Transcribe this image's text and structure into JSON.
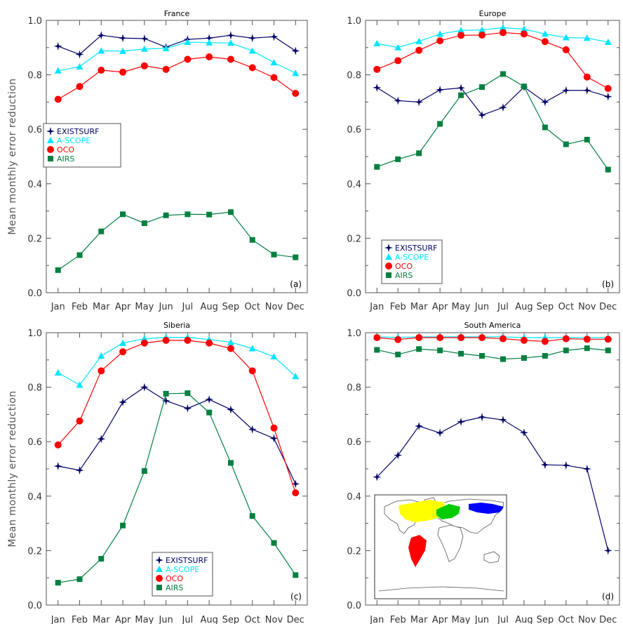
{
  "figure": {
    "ylabel": "Mean monthly error reduction",
    "months": [
      "Jan",
      "Feb",
      "Mar",
      "Apr",
      "May",
      "Jun",
      "Jul",
      "Aug",
      "Sep",
      "Oct",
      "Nov",
      "Dec"
    ],
    "yticks": [
      "0.0",
      "0.2",
      "0.4",
      "0.6",
      "0.8",
      "1.0"
    ]
  },
  "series_styles": [
    {
      "name": "EXISTSURF",
      "color": "#000066",
      "marker": "star"
    },
    {
      "name": "A-SCOPE",
      "color": "#00e5ff",
      "marker": "triangle"
    },
    {
      "name": "OCO",
      "color": "#ff0000",
      "marker": "circle"
    },
    {
      "name": "AIRS",
      "color": "#008040",
      "marker": "square"
    }
  ],
  "map_inset": {
    "regions": [
      {
        "name": "France",
        "color": "#00cc00"
      },
      {
        "name": "Europe",
        "color": "#ffff00"
      },
      {
        "name": "Siberia",
        "color": "#0000ff"
      },
      {
        "name": "South America",
        "color": "#ff0000"
      }
    ]
  },
  "chart_data": [
    {
      "type": "line",
      "title": "France",
      "panel": "(a)",
      "ylabel": "Mean monthly error reduction",
      "categories": [
        "Jan",
        "Feb",
        "Mar",
        "Apr",
        "May",
        "Jun",
        "Jul",
        "Aug",
        "Sep",
        "Oct",
        "Nov",
        "Dec"
      ],
      "ylim": [
        0,
        1
      ],
      "legend": "middle-left",
      "series": [
        {
          "name": "EXISTSURF",
          "values": [
            0.905,
            0.875,
            0.945,
            0.935,
            0.933,
            0.902,
            0.93,
            0.935,
            0.945,
            0.935,
            0.94,
            0.888
          ]
        },
        {
          "name": "A-SCOPE",
          "values": [
            0.815,
            0.83,
            0.888,
            0.887,
            0.895,
            0.897,
            0.92,
            0.918,
            0.917,
            0.888,
            0.845,
            0.806
          ]
        },
        {
          "name": "OCO",
          "values": [
            0.71,
            0.757,
            0.817,
            0.81,
            0.833,
            0.82,
            0.857,
            0.866,
            0.857,
            0.826,
            0.79,
            0.732
          ]
        },
        {
          "name": "AIRS",
          "values": [
            0.083,
            0.138,
            0.225,
            0.288,
            0.255,
            0.284,
            0.288,
            0.287,
            0.296,
            0.194,
            0.14,
            0.13
          ]
        }
      ]
    },
    {
      "type": "line",
      "title": "Europe",
      "panel": "(b)",
      "categories": [
        "Jan",
        "Feb",
        "Mar",
        "Apr",
        "May",
        "Jun",
        "Jul",
        "Aug",
        "Sep",
        "Oct",
        "Nov",
        "Dec"
      ],
      "ylim": [
        0,
        1
      ],
      "legend": "lower-left",
      "series": [
        {
          "name": "EXISTSURF",
          "values": [
            0.753,
            0.705,
            0.7,
            0.745,
            0.752,
            0.652,
            0.68,
            0.755,
            0.7,
            0.743,
            0.743,
            0.72
          ]
        },
        {
          "name": "A-SCOPE",
          "values": [
            0.915,
            0.9,
            0.923,
            0.95,
            0.963,
            0.965,
            0.973,
            0.968,
            0.95,
            0.937,
            0.935,
            0.92
          ]
        },
        {
          "name": "OCO",
          "values": [
            0.82,
            0.852,
            0.89,
            0.925,
            0.945,
            0.946,
            0.955,
            0.95,
            0.922,
            0.892,
            0.792,
            0.75
          ]
        },
        {
          "name": "AIRS",
          "values": [
            0.462,
            0.49,
            0.512,
            0.62,
            0.725,
            0.755,
            0.803,
            0.757,
            0.607,
            0.545,
            0.562,
            0.452
          ]
        }
      ]
    },
    {
      "type": "line",
      "title": "Siberia",
      "panel": "(c)",
      "ylabel": "Mean monthly error reduction",
      "categories": [
        "Jan",
        "Feb",
        "Mar",
        "Apr",
        "May",
        "Jun",
        "Jul",
        "Aug",
        "Sep",
        "Oct",
        "Nov",
        "Dec"
      ],
      "ylim": [
        0,
        1
      ],
      "legend": "lower-center",
      "series": [
        {
          "name": "EXISTSURF",
          "values": [
            0.51,
            0.495,
            0.61,
            0.745,
            0.8,
            0.75,
            0.722,
            0.755,
            0.718,
            0.645,
            0.612,
            0.445
          ]
        },
        {
          "name": "A-SCOPE",
          "values": [
            0.853,
            0.808,
            0.915,
            0.962,
            0.978,
            0.983,
            0.983,
            0.975,
            0.965,
            0.942,
            0.912,
            0.84
          ]
        },
        {
          "name": "OCO",
          "values": [
            0.588,
            0.676,
            0.86,
            0.93,
            0.962,
            0.972,
            0.972,
            0.962,
            0.942,
            0.86,
            0.65,
            0.412
          ]
        },
        {
          "name": "AIRS",
          "values": [
            0.082,
            0.095,
            0.17,
            0.292,
            0.492,
            0.776,
            0.778,
            0.707,
            0.522,
            0.327,
            0.228,
            0.11
          ]
        }
      ]
    },
    {
      "type": "line",
      "title": "South America",
      "panel": "(d)",
      "categories": [
        "Jan",
        "Feb",
        "Mar",
        "Apr",
        "May",
        "Jun",
        "Jul",
        "Aug",
        "Sep",
        "Oct",
        "Nov",
        "Dec"
      ],
      "ylim": [
        0,
        1
      ],
      "series": [
        {
          "name": "EXISTSURF",
          "values": [
            0.47,
            0.55,
            0.657,
            0.632,
            0.673,
            0.69,
            0.68,
            0.633,
            0.515,
            0.513,
            0.5,
            0.2
          ]
        },
        {
          "name": "A-SCOPE",
          "values": [
            0.985,
            0.983,
            0.985,
            0.985,
            0.985,
            0.985,
            0.985,
            0.982,
            0.982,
            0.982,
            0.982,
            0.982
          ]
        },
        {
          "name": "OCO",
          "values": [
            0.982,
            0.975,
            0.982,
            0.982,
            0.982,
            0.982,
            0.978,
            0.972,
            0.968,
            0.978,
            0.976,
            0.976
          ]
        },
        {
          "name": "AIRS",
          "values": [
            0.937,
            0.92,
            0.94,
            0.935,
            0.923,
            0.915,
            0.903,
            0.907,
            0.915,
            0.935,
            0.943,
            0.935
          ]
        }
      ]
    }
  ]
}
